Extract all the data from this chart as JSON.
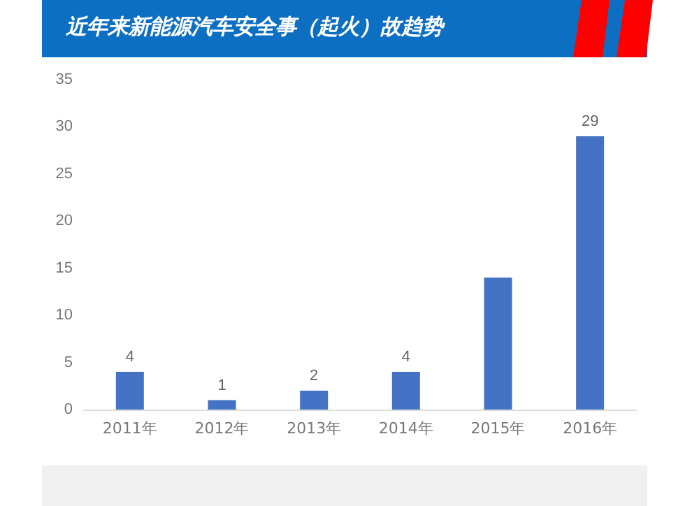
{
  "chart_data": {
    "type": "bar",
    "title": "近年来新能源汽车安全事（起火）故趋势",
    "categories": [
      "2011年",
      "2012年",
      "2013年",
      "2014年",
      "2015年",
      "2016年"
    ],
    "values": [
      4,
      1,
      2,
      4,
      14,
      29
    ],
    "value_labels": [
      "4",
      "1",
      "2",
      "4",
      null,
      "29"
    ],
    "color": "#4472c4",
    "ylim": [
      0,
      35
    ],
    "yticks": [
      0,
      5,
      10,
      15,
      20,
      25,
      30,
      35
    ],
    "grid": false
  }
}
